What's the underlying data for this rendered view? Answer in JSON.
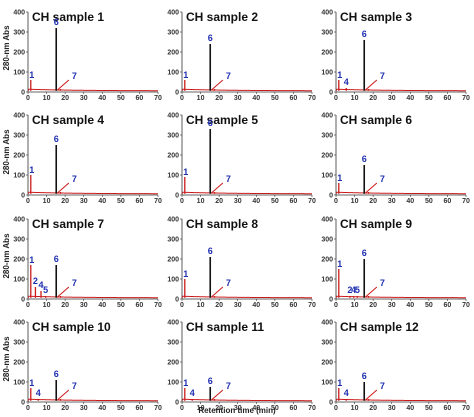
{
  "figure": {
    "ylabel": "280-nm Abs",
    "xlabel": "Retention time (min)"
  },
  "chart_data": {
    "type": "line",
    "layout": "small-multiples 4x3",
    "xlim": [
      0,
      70
    ],
    "ylim": [
      0,
      400
    ],
    "xticks": [
      "0",
      "10",
      "20",
      "30",
      "40",
      "50",
      "60",
      "70"
    ],
    "yticks": [
      "0",
      "100",
      "200",
      "300",
      "400"
    ],
    "colors": {
      "chromatogram": "#cc1a1a",
      "main_peak": "#111111",
      "peak_label": "#1f2fb0"
    },
    "panels": [
      {
        "title": "CH sample 1",
        "peaks": [
          {
            "label": "1",
            "x": 1.5,
            "y": 60
          },
          {
            "label": "6",
            "x": 15.2,
            "y": 320
          },
          {
            "label": "7",
            "x": 17.5,
            "y": 15
          }
        ]
      },
      {
        "title": "CH sample 2",
        "peaks": [
          {
            "label": "1",
            "x": 1.5,
            "y": 60
          },
          {
            "label": "6",
            "x": 15.2,
            "y": 240
          },
          {
            "label": "7",
            "x": 17.5,
            "y": 15
          }
        ]
      },
      {
        "title": "CH sample 3",
        "peaks": [
          {
            "label": "1",
            "x": 1.5,
            "y": 60
          },
          {
            "label": "4",
            "x": 5.5,
            "y": 20
          },
          {
            "label": "6",
            "x": 15.2,
            "y": 260
          },
          {
            "label": "7",
            "x": 17.5,
            "y": 15
          }
        ]
      },
      {
        "title": "CH sample 4",
        "peaks": [
          {
            "label": "1",
            "x": 1.5,
            "y": 100
          },
          {
            "label": "6",
            "x": 15.2,
            "y": 250
          },
          {
            "label": "7",
            "x": 17.5,
            "y": 15
          }
        ]
      },
      {
        "title": "CH sample 5",
        "peaks": [
          {
            "label": "1",
            "x": 1.5,
            "y": 90
          },
          {
            "label": "6",
            "x": 15.2,
            "y": 330
          },
          {
            "label": "7",
            "x": 17.5,
            "y": 15
          }
        ]
      },
      {
        "title": "CH sample 6",
        "peaks": [
          {
            "label": "1",
            "x": 1.5,
            "y": 60
          },
          {
            "label": "6",
            "x": 15.2,
            "y": 150
          },
          {
            "label": "7",
            "x": 17.5,
            "y": 15
          }
        ]
      },
      {
        "title": "CH sample 7",
        "peaks": [
          {
            "label": "1",
            "x": 1.5,
            "y": 170
          },
          {
            "label": "2",
            "x": 4.0,
            "y": 60
          },
          {
            "label": "4",
            "x": 7.0,
            "y": 40
          },
          {
            "label": "5",
            "x": 9.5,
            "y": 15
          },
          {
            "label": "6",
            "x": 15.2,
            "y": 170
          },
          {
            "label": "7",
            "x": 17.5,
            "y": 15
          }
        ]
      },
      {
        "title": "CH sample 8",
        "peaks": [
          {
            "label": "1",
            "x": 1.5,
            "y": 100
          },
          {
            "label": "6",
            "x": 15.2,
            "y": 210
          },
          {
            "label": "7",
            "x": 17.5,
            "y": 15
          }
        ]
      },
      {
        "title": "CH sample 9",
        "peaks": [
          {
            "label": "1",
            "x": 1.5,
            "y": 150
          },
          {
            "label": "2",
            "x": 7.5,
            "y": 15
          },
          {
            "label": "4",
            "x": 9.5,
            "y": 15
          },
          {
            "label": "5",
            "x": 11.5,
            "y": 15
          },
          {
            "label": "6",
            "x": 15.2,
            "y": 200
          },
          {
            "label": "7",
            "x": 17.5,
            "y": 15
          }
        ]
      },
      {
        "title": "CH sample 10",
        "peaks": [
          {
            "label": "1",
            "x": 1.5,
            "y": 70
          },
          {
            "label": "4",
            "x": 5.5,
            "y": 15
          },
          {
            "label": "6",
            "x": 15.2,
            "y": 110
          },
          {
            "label": "7",
            "x": 17.5,
            "y": 15
          }
        ]
      },
      {
        "title": "CH sample 11",
        "peaks": [
          {
            "label": "1",
            "x": 1.5,
            "y": 70
          },
          {
            "label": "4",
            "x": 5.5,
            "y": 15
          },
          {
            "label": "6",
            "x": 15.2,
            "y": 75
          },
          {
            "label": "7",
            "x": 17.5,
            "y": 15
          }
        ]
      },
      {
        "title": "CH sample 12",
        "peaks": [
          {
            "label": "1",
            "x": 1.5,
            "y": 70
          },
          {
            "label": "4",
            "x": 5.5,
            "y": 15
          },
          {
            "label": "6",
            "x": 15.2,
            "y": 100
          },
          {
            "label": "7",
            "x": 17.5,
            "y": 15
          }
        ]
      }
    ]
  }
}
